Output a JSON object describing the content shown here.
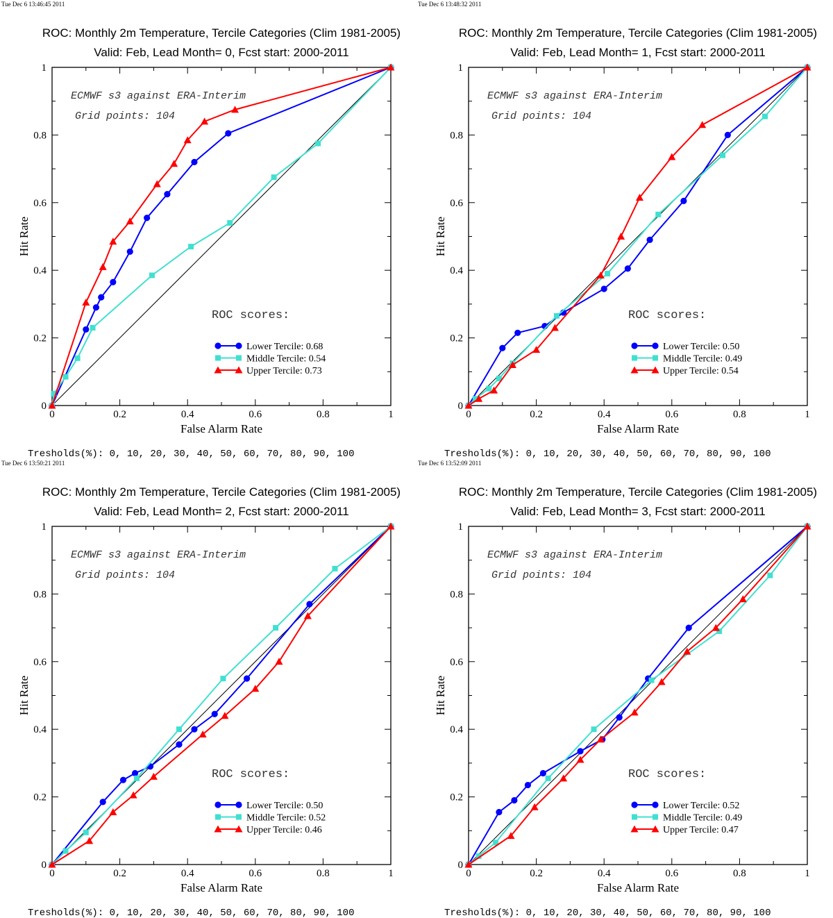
{
  "panels": [
    {
      "timestamp": "Tue Dec  6 13:46:45 2011",
      "thresholds": "Tresholds(%): 0, 10, 20, 30, 40, 50, 60, 70, 80, 90, 100",
      "chart_data": {
        "type": "line",
        "title": "ROC: Monthly 2m Temperature, Tercile Categories (Clim 1981-2005)",
        "subtitle": "Valid: Feb, Lead Month= 0, Fcst start: 2000-2011",
        "xlabel": "False Alarm Rate",
        "ylabel": "Hit Rate",
        "xlim": [
          0,
          1
        ],
        "ylim": [
          0,
          1
        ],
        "xticks": [
          "0",
          "0.2",
          "0.4",
          "0.6",
          "0.8",
          "1"
        ],
        "yticks": [
          "0",
          "0.2",
          "0.4",
          "0.6",
          "0.8",
          "1"
        ],
        "annotations": [
          "ECMWF s3 against ERA-Interim",
          "Grid points:  104"
        ],
        "legend_title": "ROC scores:",
        "series": [
          {
            "name": "Lower Tercile: 0.68",
            "color": "#0000ff",
            "marker": "circle",
            "x": [
              0,
              0.1,
              0.13,
              0.145,
              0.18,
              0.23,
              0.28,
              0.34,
              0.42,
              0.52,
              1
            ],
            "y": [
              0,
              0.225,
              0.29,
              0.32,
              0.365,
              0.455,
              0.555,
              0.625,
              0.72,
              0.805,
              1
            ]
          },
          {
            "name": "Middle Tercile: 0.54",
            "color": "#40e0d0",
            "marker": "square",
            "x": [
              0,
              0.005,
              0.04,
              0.075,
              0.12,
              0.295,
              0.41,
              0.525,
              0.655,
              0.785,
              1
            ],
            "y": [
              0,
              0.035,
              0.085,
              0.14,
              0.23,
              0.385,
              0.47,
              0.54,
              0.675,
              0.775,
              1
            ]
          },
          {
            "name": "Upper Tercile: 0.73",
            "color": "#ff0000",
            "marker": "triangle",
            "x": [
              0,
              0.1,
              0.15,
              0.18,
              0.23,
              0.31,
              0.36,
              0.4,
              0.45,
              0.54,
              1
            ],
            "y": [
              0,
              0.305,
              0.41,
              0.485,
              0.545,
              0.655,
              0.715,
              0.785,
              0.84,
              0.875,
              1
            ]
          }
        ]
      }
    },
    {
      "timestamp": "Tue Dec  6 13:48:32 2011",
      "thresholds": "Tresholds(%): 0, 10, 20, 30, 40, 50, 60, 70, 80, 90, 100",
      "chart_data": {
        "type": "line",
        "title": "ROC: Monthly 2m Temperature, Tercile Categories (Clim 1981-2005)",
        "subtitle": "Valid: Feb, Lead Month= 1, Fcst start: 2000-2011",
        "xlabel": "False Alarm Rate",
        "ylabel": "Hit Rate",
        "xlim": [
          0,
          1
        ],
        "ylim": [
          0,
          1
        ],
        "xticks": [
          "0",
          "0.2",
          "0.4",
          "0.6",
          "0.8",
          "1"
        ],
        "yticks": [
          "0",
          "0.2",
          "0.4",
          "0.6",
          "0.8",
          "1"
        ],
        "annotations": [
          "ECMWF s3 against ERA-Interim",
          "Grid points:  104"
        ],
        "legend_title": "ROC scores:",
        "series": [
          {
            "name": "Lower Tercile: 0.50",
            "color": "#0000ff",
            "marker": "circle",
            "x": [
              0,
              0.1,
              0.145,
              0.225,
              0.28,
              0.4,
              0.47,
              0.535,
              0.635,
              0.765,
              1
            ],
            "y": [
              0,
              0.17,
              0.215,
              0.235,
              0.275,
              0.345,
              0.405,
              0.49,
              0.605,
              0.8,
              1
            ]
          },
          {
            "name": "Middle Tercile: 0.49",
            "color": "#40e0d0",
            "marker": "square",
            "x": [
              0,
              0.02,
              0.06,
              0.09,
              0.13,
              0.26,
              0.41,
              0.56,
              0.75,
              0.875,
              1
            ],
            "y": [
              0,
              0.02,
              0.05,
              0.08,
              0.125,
              0.265,
              0.39,
              0.565,
              0.74,
              0.855,
              1
            ]
          },
          {
            "name": "Upper Tercile: 0.54",
            "color": "#ff0000",
            "marker": "triangle",
            "x": [
              0,
              0.03,
              0.075,
              0.13,
              0.2,
              0.255,
              0.39,
              0.45,
              0.505,
              0.6,
              0.69,
              1
            ],
            "y": [
              0,
              0.02,
              0.045,
              0.12,
              0.165,
              0.23,
              0.385,
              0.5,
              0.615,
              0.735,
              0.83,
              1
            ]
          }
        ]
      }
    },
    {
      "timestamp": "Tue Dec  6 13:50:21 2011",
      "thresholds": "Tresholds(%): 0, 10, 20, 30, 40, 50, 60, 70, 80, 90, 100",
      "chart_data": {
        "type": "line",
        "title": "ROC: Monthly 2m Temperature, Tercile Categories (Clim 1981-2005)",
        "subtitle": "Valid: Feb, Lead Month= 2, Fcst start: 2000-2011",
        "xlabel": "False Alarm Rate",
        "ylabel": "Hit Rate",
        "xlim": [
          0,
          1
        ],
        "ylim": [
          0,
          1
        ],
        "xticks": [
          "0",
          "0.2",
          "0.4",
          "0.6",
          "0.8",
          "1"
        ],
        "yticks": [
          "0",
          "0.2",
          "0.4",
          "0.6",
          "0.8",
          "1"
        ],
        "annotations": [
          "ECMWF s3 against ERA-Interim",
          "Grid points:  104"
        ],
        "legend_title": "ROC scores:",
        "series": [
          {
            "name": "Lower Tercile: 0.50",
            "color": "#0000ff",
            "marker": "circle",
            "x": [
              0,
              0.15,
              0.21,
              0.245,
              0.29,
              0.375,
              0.42,
              0.48,
              0.575,
              0.76,
              1
            ],
            "y": [
              0,
              0.185,
              0.25,
              0.27,
              0.29,
              0.355,
              0.4,
              0.445,
              0.55,
              0.77,
              1
            ]
          },
          {
            "name": "Middle Tercile: 0.52",
            "color": "#40e0d0",
            "marker": "square",
            "x": [
              0,
              0.04,
              0.1,
              0.25,
              0.375,
              0.505,
              0.66,
              0.835,
              1
            ],
            "y": [
              0,
              0.04,
              0.095,
              0.255,
              0.4,
              0.55,
              0.7,
              0.875,
              1
            ]
          },
          {
            "name": "Upper Tercile: 0.46",
            "color": "#ff0000",
            "marker": "triangle",
            "x": [
              0,
              0.11,
              0.18,
              0.24,
              0.3,
              0.445,
              0.51,
              0.6,
              0.67,
              0.755,
              1
            ],
            "y": [
              0,
              0.07,
              0.155,
              0.205,
              0.26,
              0.385,
              0.44,
              0.52,
              0.6,
              0.735,
              1
            ]
          }
        ]
      }
    },
    {
      "timestamp": "Tue Dec  6 13:52:09 2011",
      "thresholds": "Tresholds(%): 0, 10, 20, 30, 40, 50, 60, 70, 80, 90, 100",
      "chart_data": {
        "type": "line",
        "title": "ROC: Monthly 2m Temperature, Tercile Categories (Clim 1981-2005)",
        "subtitle": "Valid: Feb, Lead Month= 3, Fcst start: 2000-2011",
        "xlabel": "False Alarm Rate",
        "ylabel": "Hit Rate",
        "xlim": [
          0,
          1
        ],
        "ylim": [
          0,
          1
        ],
        "xticks": [
          "0",
          "0.2",
          "0.4",
          "0.6",
          "0.8",
          "1"
        ],
        "yticks": [
          "0",
          "0.2",
          "0.4",
          "0.6",
          "0.8",
          "1"
        ],
        "annotations": [
          "ECMWF s3 against ERA-Interim",
          "Grid points:  104"
        ],
        "legend_title": "ROC scores:",
        "series": [
          {
            "name": "Lower Tercile: 0.52",
            "color": "#0000ff",
            "marker": "circle",
            "x": [
              0,
              0.09,
              0.135,
              0.175,
              0.22,
              0.33,
              0.395,
              0.445,
              0.53,
              0.65,
              1
            ],
            "y": [
              0,
              0.155,
              0.19,
              0.235,
              0.27,
              0.335,
              0.37,
              0.435,
              0.55,
              0.7,
              1
            ]
          },
          {
            "name": "Middle Tercile: 0.49",
            "color": "#40e0d0",
            "marker": "square",
            "x": [
              0,
              0.03,
              0.08,
              0.235,
              0.37,
              0.54,
              0.74,
              0.89,
              1
            ],
            "y": [
              0,
              0.025,
              0.065,
              0.255,
              0.4,
              0.545,
              0.69,
              0.855,
              1
            ]
          },
          {
            "name": "Upper Tercile: 0.47",
            "color": "#ff0000",
            "marker": "triangle",
            "x": [
              0,
              0.125,
              0.195,
              0.28,
              0.33,
              0.39,
              0.49,
              0.57,
              0.645,
              0.73,
              0.81,
              1
            ],
            "y": [
              0,
              0.085,
              0.17,
              0.255,
              0.31,
              0.37,
              0.45,
              0.54,
              0.63,
              0.7,
              0.785,
              1
            ]
          }
        ]
      }
    }
  ]
}
